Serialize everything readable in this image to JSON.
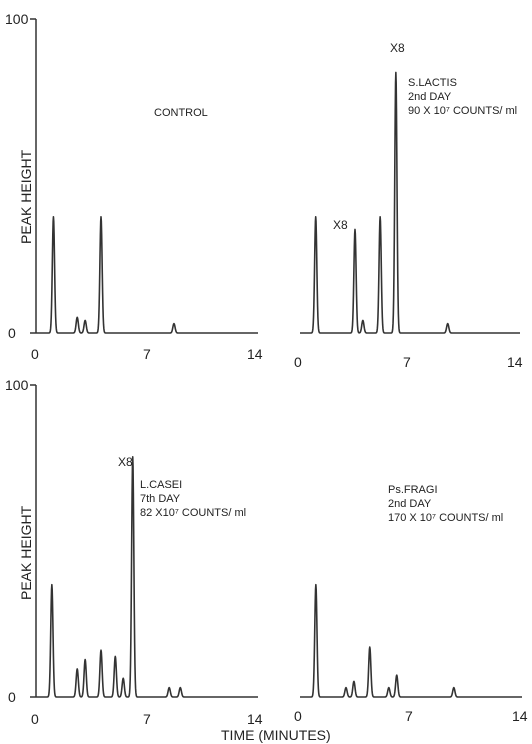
{
  "chart_data": [
    {
      "type": "line",
      "ylabel": "PEAK HEIGHT",
      "xlabel": "",
      "y_ticks": [
        "100",
        "0"
      ],
      "x_ticks": [
        "0",
        "7",
        "14"
      ],
      "xlim": [
        0,
        14
      ],
      "ylim": [
        0,
        100
      ],
      "labels": [
        "CONTROL"
      ],
      "peak_markers": [],
      "peaks": [
        [
          1.1,
          37
        ],
        [
          2.6,
          5
        ],
        [
          3.1,
          4
        ],
        [
          4.1,
          37
        ],
        [
          8.7,
          3
        ]
      ]
    },
    {
      "type": "line",
      "ylabel": "",
      "xlabel": "",
      "y_ticks": [],
      "x_ticks": [
        "0",
        "7",
        "14"
      ],
      "xlim": [
        0,
        14
      ],
      "ylim": [
        0,
        100
      ],
      "labels": [
        "S.LACTIS",
        "2nd DAY",
        "90 X 10⁷ COUNTS/ ml"
      ],
      "peak_markers": [
        {
          "text": "X8",
          "x": 3.5,
          "y": 38
        },
        {
          "text": "X8",
          "x": 6.1,
          "y": 85
        }
      ],
      "peaks": [
        [
          1.0,
          37
        ],
        [
          3.5,
          33
        ],
        [
          4.0,
          4
        ],
        [
          5.1,
          37
        ],
        [
          6.1,
          83
        ],
        [
          9.4,
          3
        ]
      ]
    },
    {
      "type": "line",
      "ylabel": "PEAK HEIGHT",
      "xlabel": "",
      "y_ticks": [
        "100",
        "0"
      ],
      "x_ticks": [
        "0",
        "7",
        "14"
      ],
      "xlim": [
        0,
        14
      ],
      "ylim": [
        0,
        100
      ],
      "labels": [
        "L.CASEI",
        "7th DAY",
        "82 X10⁷ COUNTS/ ml"
      ],
      "peak_markers": [
        {
          "text": "X8",
          "x": 5.8,
          "y": 80
        }
      ],
      "peaks": [
        [
          1.0,
          36
        ],
        [
          2.6,
          9
        ],
        [
          3.1,
          12
        ],
        [
          4.1,
          15
        ],
        [
          5.0,
          13
        ],
        [
          5.5,
          6
        ],
        [
          6.1,
          77
        ],
        [
          8.4,
          3
        ],
        [
          9.1,
          3
        ]
      ]
    },
    {
      "type": "line",
      "ylabel": "",
      "xlabel": "TIME (MINUTES)",
      "y_ticks": [],
      "x_ticks": [
        "0",
        "7",
        "14"
      ],
      "xlim": [
        0,
        14
      ],
      "ylim": [
        0,
        100
      ],
      "labels": [
        "Ps.FRAGI",
        "2nd DAY",
        "170 X 10⁷ COUNTS/ ml"
      ],
      "peak_markers": [],
      "peaks": [
        [
          1.0,
          36
        ],
        [
          2.9,
          3
        ],
        [
          3.4,
          5
        ],
        [
          4.4,
          16
        ],
        [
          5.6,
          3
        ],
        [
          6.1,
          7
        ],
        [
          9.7,
          3
        ]
      ]
    }
  ]
}
